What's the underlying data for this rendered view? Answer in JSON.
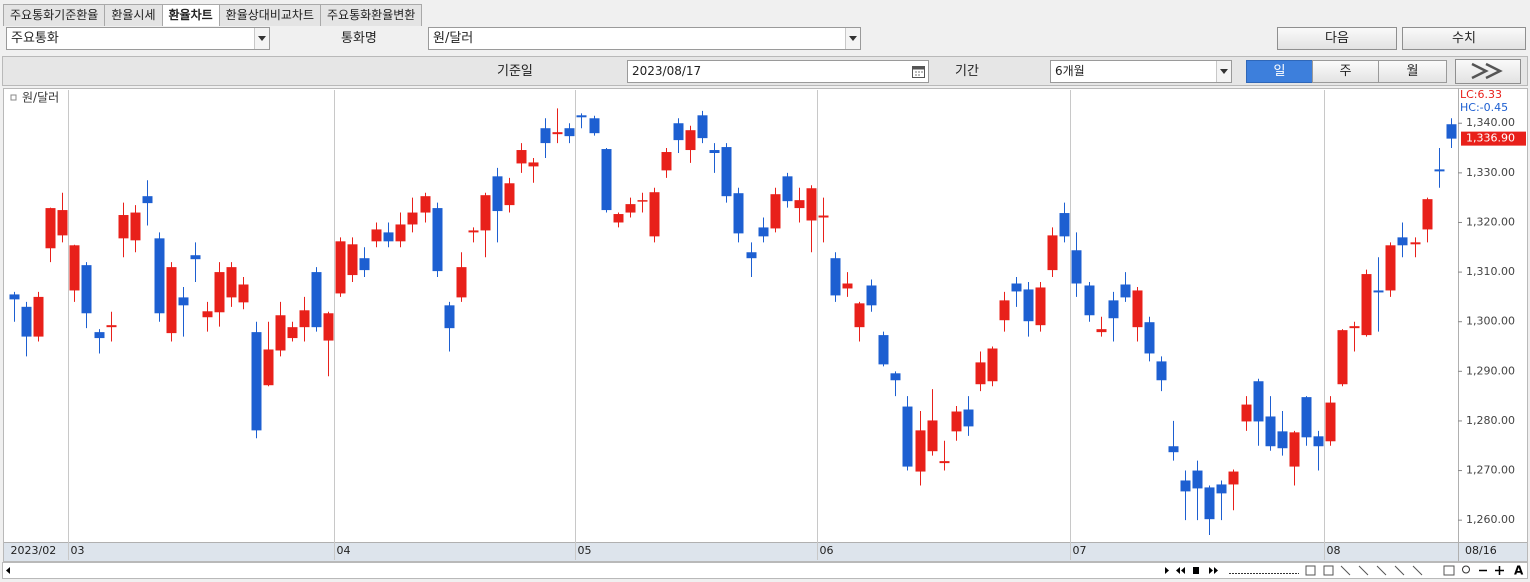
{
  "tabs": [
    "주요통화기준환율",
    "환율시세",
    "환율차트",
    "환율상대비교차트",
    "주요통화환율변환"
  ],
  "active_tab": 2,
  "toolbar": {
    "group": "주요통화",
    "currency_label": "통화명",
    "currency": "원/달러",
    "next_button": "다음",
    "values_button": "수치",
    "date_label": "기준일",
    "date": "2023/08/17",
    "period_label": "기간",
    "period": "6개월",
    "interval_buttons": [
      "일",
      "주",
      "월"
    ],
    "active_interval": 0
  },
  "chart_data": {
    "type": "candlestick",
    "series": [
      {
        "name": "원/달러",
        "up_color": "#e8201a",
        "down_color": "#1d5fd1",
        "open": [
          1305.5,
          1303,
          1297,
          1314.8,
          1317.4,
          1306.3,
          1311.4,
          1297.9,
          1298.9,
          1316.8,
          1316.4,
          1325.3,
          1316.8,
          1297.7,
          1304.9,
          1313.4,
          1300.9,
          1301.9,
          1304.9,
          1303.9,
          1297.9,
          1287.2,
          1294.2,
          1296.7,
          1298.9,
          1310,
          1296.2,
          1305.7,
          1309.4,
          1312.8,
          1316.2,
          1318,
          1316.2,
          1319.6,
          1322,
          1322.9,
          1303.3,
          1304.9,
          1318,
          1318.4,
          1329.3,
          1323.5,
          1331.9,
          1331.3,
          1339,
          1337.8,
          1339,
          1341.6,
          1341,
          1334.8,
          1320,
          1322,
          1324.3,
          1317.2,
          1330.5,
          1340,
          1334.6,
          1341.6,
          1334.6,
          1335.2,
          1325.9,
          1314,
          1319,
          1318.8,
          1329.3,
          1322.9,
          1320.4,
          1321,
          1312.8,
          1306.7,
          1298.9,
          1307.3,
          1297.3,
          1289.6,
          1282.9,
          1269.8,
          1273.9,
          1271.5,
          1277.9,
          1282.3,
          1287.4,
          1288,
          1300.3,
          1307.7,
          1306.5,
          1299.3,
          1310.4,
          1321.9,
          1314.4,
          1307.3,
          1297.9,
          1304.3,
          1307.5,
          1298.9,
          1299.9,
          1292,
          1274.9,
          1268,
          1270,
          1266.6,
          1267.2,
          1267.2,
          1279.9,
          1288,
          1280.9,
          1277.9,
          1270.8,
          1284.8,
          1276.9,
          1275.9,
          1287.4,
          1298.7,
          1297.3,
          1306.3,
          1306.3,
          1317,
          1315.6,
          1318.6,
          1330.7,
          1339.8
        ],
        "high": [
          1306,
          1304,
          1306,
          1323,
          1326,
          1315.5,
          1312,
          1298.5,
          1302,
          1324,
          1323.5,
          1328.5,
          1318,
          1312,
          1307,
          1316,
          1304,
          1312,
          1312,
          1309,
          1300,
          1300,
          1304,
          1300,
          1305,
          1311,
          1302,
          1317,
          1317,
          1315,
          1320,
          1320,
          1322,
          1325,
          1326,
          1324,
          1304,
          1314,
          1319,
          1326,
          1331,
          1329,
          1336,
          1333,
          1341,
          1343,
          1340,
          1342,
          1341.5,
          1335,
          1322,
          1325,
          1326,
          1327,
          1335,
          1341,
          1339.5,
          1342.5,
          1336,
          1336,
          1327,
          1316,
          1321,
          1327,
          1330,
          1327,
          1327.5,
          1325,
          1314,
          1310,
          1304,
          1308.5,
          1298,
          1290,
          1285,
          1282,
          1286.4,
          1276,
          1283,
          1285,
          1294,
          1295,
          1306,
          1309,
          1308,
          1308,
          1319,
          1324,
          1318,
          1308,
          1301,
          1306,
          1310,
          1307,
          1301,
          1293,
          1280,
          1270,
          1272,
          1267,
          1268,
          1270.2,
          1285,
          1288.5,
          1285,
          1282,
          1278,
          1285,
          1278,
          1285,
          1298.5,
          1300,
          1310.5,
          1313,
          1316,
          1320,
          1317,
          1325,
          1335,
          1341
        ],
        "low": [
          1300,
          1293,
          1296,
          1312,
          1316,
          1304,
          1298.7,
          1293.6,
          1296,
          1313,
          1314,
          1319.4,
          1300,
          1296,
          1297,
          1308,
          1298,
          1299,
          1303,
          1302.5,
          1276.5,
          1287,
          1293,
          1296,
          1296,
          1298,
          1289,
          1305,
          1308,
          1309,
          1315,
          1315,
          1315,
          1318,
          1320,
          1309,
          1294,
          1304,
          1316,
          1313,
          1316,
          1322,
          1330,
          1328,
          1333,
          1336,
          1336,
          1339,
          1337.5,
          1322,
          1319,
          1321,
          1322,
          1316,
          1329,
          1334,
          1332,
          1336,
          1330,
          1324,
          1316,
          1309,
          1316,
          1318,
          1323,
          1320,
          1314,
          1316,
          1304,
          1305,
          1296,
          1302,
          1291,
          1285,
          1270,
          1267,
          1273,
          1270,
          1276,
          1277,
          1286,
          1287,
          1298,
          1303,
          1297,
          1298,
          1309,
          1316,
          1305,
          1300,
          1297,
          1296,
          1304,
          1296,
          1292,
          1286,
          1272,
          1260,
          1260,
          1257,
          1260,
          1262,
          1278,
          1275,
          1274,
          1273,
          1267,
          1275,
          1270,
          1275,
          1287,
          1294,
          1297,
          1298,
          1305,
          1313,
          1313,
          1316,
          1327,
          1335
        ],
        "close": [
          1304.5,
          1297,
          1305,
          1322.9,
          1322.5,
          1315.4,
          1301.7,
          1296.7,
          1299.3,
          1321.5,
          1322,
          1323.9,
          1301.7,
          1311,
          1303.3,
          1312.6,
          1302.1,
          1310,
          1311,
          1307.5,
          1278.1,
          1294.4,
          1301.3,
          1298.9,
          1302.3,
          1298.9,
          1301.7,
          1316.2,
          1315.6,
          1310.4,
          1318.6,
          1316.2,
          1319.6,
          1322,
          1325.3,
          1310.2,
          1298.7,
          1311,
          1318.4,
          1325.5,
          1322.3,
          1327.9,
          1334.6,
          1332.1,
          1336,
          1338.2,
          1337.4,
          1341.2,
          1338,
          1322.5,
          1321.7,
          1323.7,
          1324.5,
          1326.1,
          1334.2,
          1336.6,
          1338.6,
          1337,
          1334,
          1325.3,
          1317.8,
          1312.8,
          1317.2,
          1325.7,
          1324.3,
          1324.5,
          1326.9,
          1321.4,
          1305.3,
          1307.7,
          1303.7,
          1303.3,
          1291.4,
          1288.2,
          1270.8,
          1278.1,
          1280.1,
          1271.9,
          1281.9,
          1278.9,
          1291.8,
          1294.6,
          1304.3,
          1306.1,
          1300.1,
          1306.9,
          1317.4,
          1317.2,
          1307.7,
          1301.3,
          1298.5,
          1300.7,
          1304.9,
          1306.3,
          1293.6,
          1288.2,
          1273.7,
          1265.8,
          1266.4,
          1260.2,
          1265.4,
          1269.8,
          1283.3,
          1279.9,
          1274.9,
          1274.5,
          1277.7,
          1276.7,
          1274.9,
          1283.7,
          1298.3,
          1299.1,
          1309.6,
          1305.9,
          1315.4,
          1315.4,
          1316,
          1324.7,
          1330.3,
          1336.9
        ]
      }
    ],
    "last_price_label": "1,336.90",
    "annotations": [
      {
        "text": "LC:6.33",
        "color": "#e8201a"
      },
      {
        "text": "HC:-0.45",
        "color": "#1d5fd1"
      }
    ],
    "xlim": [
      -0.5,
      119.6
    ],
    "xticks": [
      {
        "value": -0.5,
        "label": "2023/02"
      },
      {
        "value": 4.5,
        "label": "03"
      },
      {
        "value": 26.5,
        "label": "04"
      },
      {
        "value": 46.5,
        "label": "05"
      },
      {
        "value": 66.5,
        "label": "06"
      },
      {
        "value": 87.5,
        "label": "07"
      },
      {
        "value": 108.5,
        "label": "08"
      }
    ],
    "end_label": "08/16",
    "ylim": [
      1255.6,
      1346.7
    ],
    "yticks": [
      {
        "value": 1260,
        "label": "1,260.00"
      },
      {
        "value": 1270,
        "label": "1,270.00"
      },
      {
        "value": 1280,
        "label": "1,280.00"
      },
      {
        "value": 1290,
        "label": "1,290.00"
      },
      {
        "value": 1300,
        "label": "1,300.00"
      },
      {
        "value": 1310,
        "label": "1,310.00"
      },
      {
        "value": 1320,
        "label": "1,320.00"
      },
      {
        "value": 1330,
        "label": "1,330.00"
      },
      {
        "value": 1340,
        "label": "1,340.00"
      }
    ],
    "grid": true
  },
  "scrollbar": {
    "font_button": "A"
  }
}
